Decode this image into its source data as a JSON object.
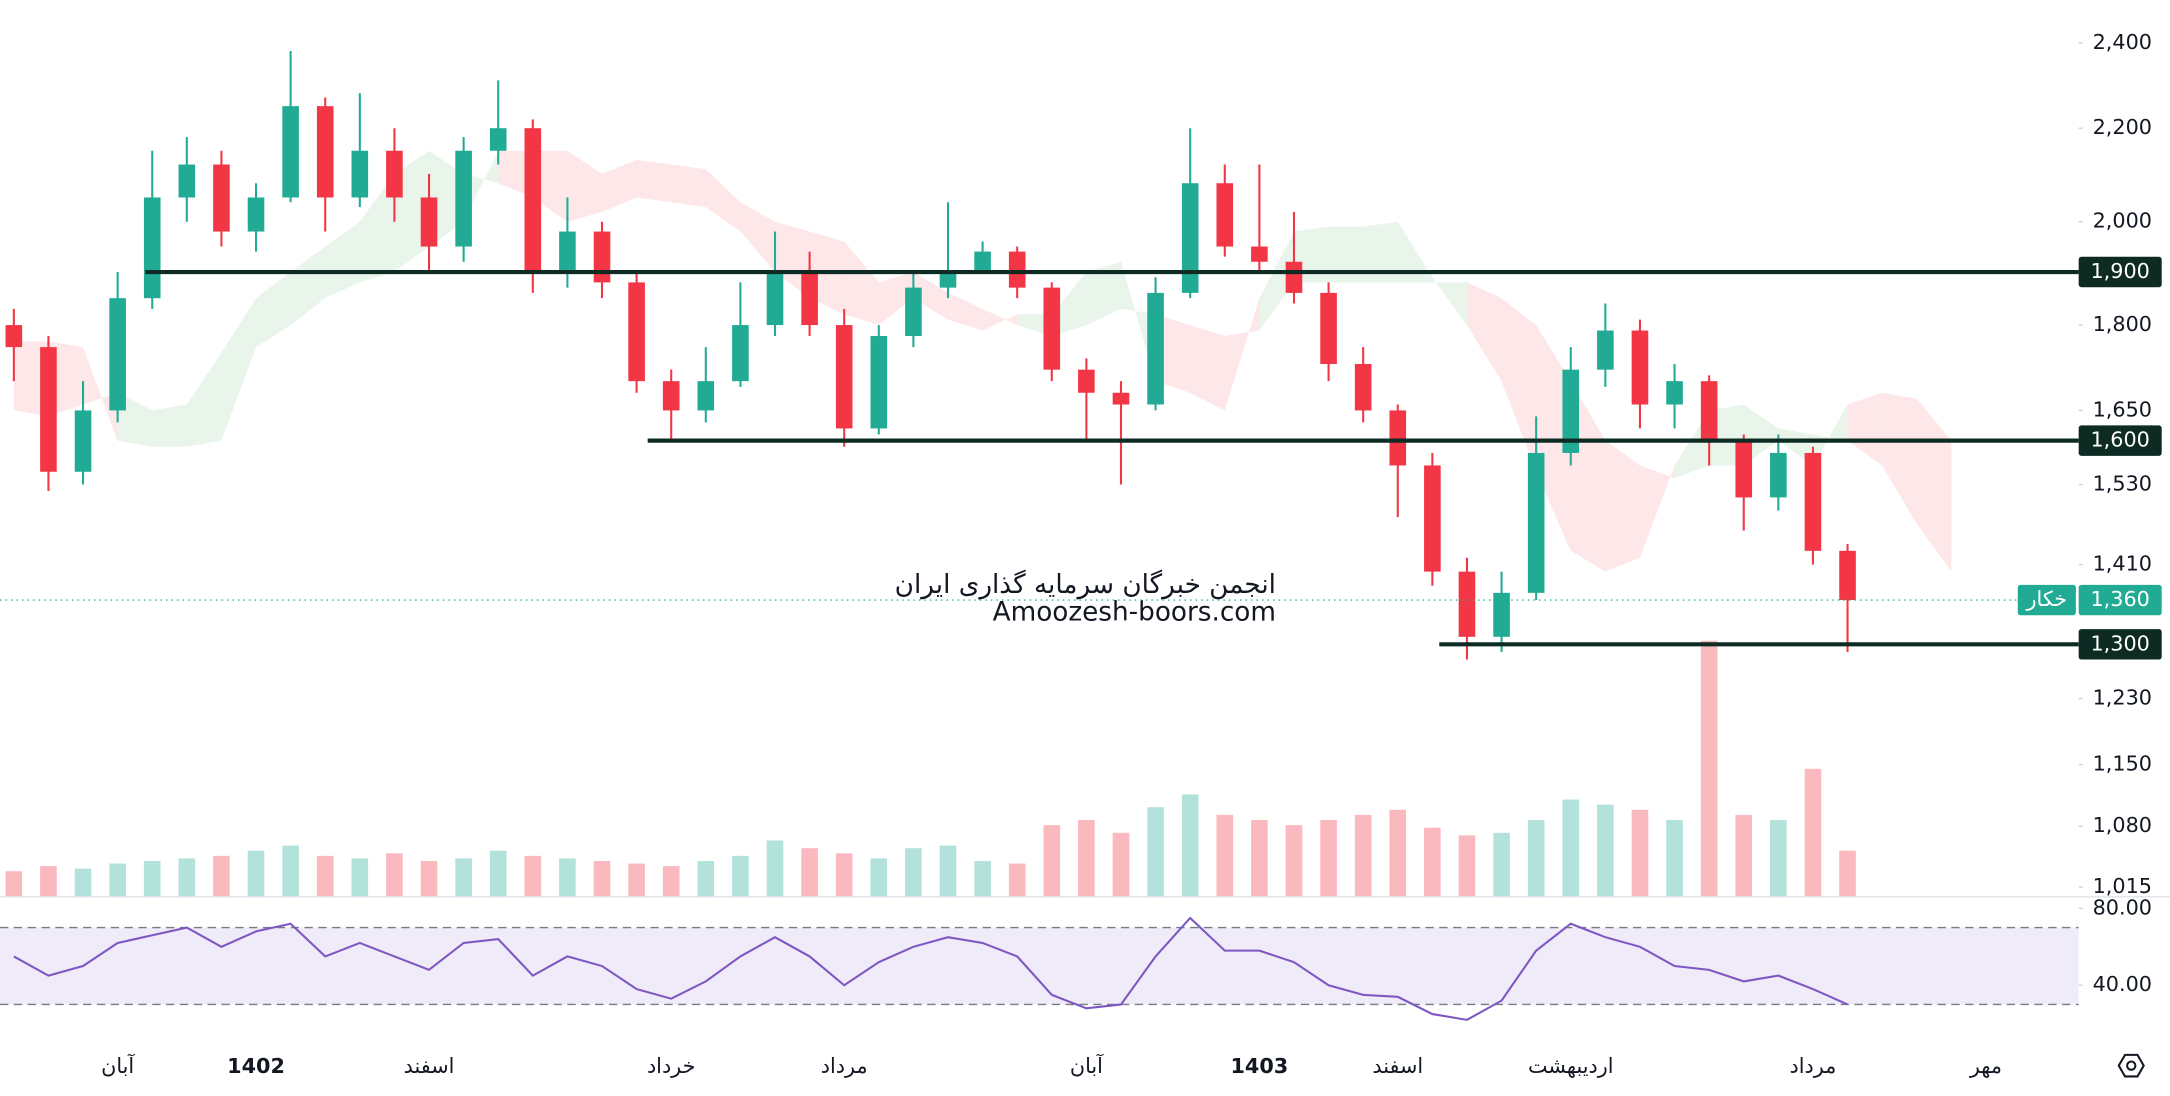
{
  "chart_data": {
    "type": "candlestick",
    "scale": "log",
    "categories": [
      null,
      null,
      null,
      "آبان",
      null,
      null,
      null,
      "1402",
      null,
      null,
      null,
      null,
      "اسفند",
      null,
      null,
      null,
      null,
      null,
      null,
      "خرداد",
      null,
      null,
      null,
      null,
      "مرداد",
      null,
      null,
      null,
      null,
      null,
      null,
      "آبان",
      null,
      null,
      null,
      null,
      "1403",
      null,
      null,
      null,
      "اسفند",
      null,
      null,
      null,
      null,
      "اردیبهشت",
      null,
      null,
      null,
      null,
      null,
      null,
      "مرداد",
      null,
      null,
      null,
      null,
      "مهر",
      null,
      null
    ],
    "open": [
      1800,
      1760,
      1550,
      1650,
      1850,
      2050,
      2120,
      1980,
      2050,
      2250,
      2050,
      2150,
      2050,
      1950,
      2150,
      2200,
      1900,
      1980,
      1880,
      1700,
      1650,
      1700,
      1800,
      1900,
      1800,
      1620,
      1780,
      1870,
      1900,
      1940,
      1870,
      1720,
      1680,
      1660,
      1860,
      2080,
      1950,
      1920,
      1860,
      1730,
      1650,
      1560,
      1400,
      1310,
      1370,
      1580,
      1720,
      1790,
      1660,
      1700,
      1600,
      1510,
      1580,
      1430,
      null,
      null,
      null,
      null,
      null,
      null
    ],
    "high": [
      1830,
      1780,
      1700,
      1900,
      2150,
      2180,
      2150,
      2080,
      2380,
      2270,
      2280,
      2200,
      2100,
      2180,
      2310,
      2220,
      2050,
      2000,
      1900,
      1720,
      1760,
      1880,
      1980,
      1940,
      1830,
      1800,
      1900,
      2040,
      1960,
      1950,
      1880,
      1740,
      1700,
      1890,
      2200,
      2120,
      2120,
      2020,
      1880,
      1760,
      1660,
      1580,
      1420,
      1400,
      1640,
      1760,
      1840,
      1810,
      1730,
      1710,
      1610,
      1610,
      1590,
      1440,
      null,
      null,
      null,
      null,
      null,
      null
    ],
    "low": [
      1700,
      1520,
      1530,
      1630,
      1830,
      2000,
      1950,
      1940,
      2040,
      1980,
      2030,
      2000,
      1900,
      1920,
      2120,
      1860,
      1870,
      1850,
      1680,
      1600,
      1630,
      1690,
      1780,
      1780,
      1590,
      1610,
      1760,
      1850,
      1900,
      1850,
      1700,
      1600,
      1530,
      1650,
      1850,
      1930,
      1900,
      1840,
      1700,
      1630,
      1480,
      1380,
      1280,
      1290,
      1360,
      1560,
      1690,
      1620,
      1620,
      1560,
      1460,
      1490,
      1410,
      1290,
      null,
      null,
      null,
      null,
      null,
      null
    ],
    "close": [
      1760,
      1550,
      1650,
      1850,
      2050,
      2120,
      1980,
      2050,
      2250,
      2050,
      2150,
      2050,
      1950,
      2150,
      2200,
      1900,
      1980,
      1880,
      1700,
      1650,
      1700,
      1800,
      1900,
      1800,
      1620,
      1780,
      1870,
      1900,
      1940,
      1870,
      1720,
      1680,
      1660,
      1860,
      2080,
      1950,
      1920,
      1860,
      1730,
      1650,
      1560,
      1400,
      1310,
      1370,
      1580,
      1720,
      1790,
      1660,
      1700,
      1600,
      1510,
      1580,
      1430,
      1360,
      null,
      null,
      null,
      null,
      null,
      null
    ],
    "volume": [
      1.0,
      1.2,
      1.1,
      1.3,
      1.4,
      1.5,
      1.6,
      1.8,
      2.0,
      1.6,
      1.5,
      1.7,
      1.4,
      1.5,
      1.8,
      1.6,
      1.5,
      1.4,
      1.3,
      1.2,
      1.4,
      1.6,
      2.2,
      1.9,
      1.7,
      1.5,
      1.9,
      2.0,
      1.4,
      1.3,
      2.8,
      3.0,
      2.5,
      3.5,
      4.0,
      3.2,
      3.0,
      2.8,
      3.0,
      3.2,
      3.4,
      2.7,
      2.4,
      2.5,
      3.0,
      3.8,
      3.6,
      3.4,
      3.0,
      10.0,
      3.2,
      3.0,
      5.0,
      1.8,
      null,
      null,
      null,
      null,
      null,
      null
    ],
    "cloud": {
      "span_a": [
        1650,
        1640,
        1660,
        1680,
        1650,
        1660,
        1750,
        1850,
        1900,
        1950,
        2000,
        2100,
        2150,
        2100,
        2080,
        2050,
        2000,
        2020,
        2050,
        2040,
        2030,
        1980,
        1900,
        1850,
        1820,
        1800,
        1850,
        1810,
        1790,
        1820,
        1820,
        1900,
        1920,
        1700,
        1680,
        1650,
        1850,
        1980,
        1990,
        1990,
        2000,
        1890,
        1800,
        1700,
        1550,
        1430,
        1400,
        1420,
        1560,
        1650,
        1660,
        1620,
        1610,
        1600,
        1560,
        1470,
        1400,
        null,
        null,
        null
      ],
      "span_b": [
        1770,
        1770,
        1760,
        1600,
        1590,
        1590,
        1600,
        1760,
        1800,
        1850,
        1880,
        1900,
        1950,
        2000,
        2150,
        2150,
        2150,
        2100,
        2130,
        2120,
        2110,
        2040,
        2000,
        1980,
        1960,
        1880,
        1900,
        1860,
        1830,
        1800,
        1780,
        1800,
        1830,
        1820,
        1800,
        1780,
        1790,
        1880,
        1880,
        1880,
        1880,
        1880,
        1880,
        1850,
        1800,
        1700,
        1600,
        1560,
        1540,
        1560,
        1560,
        1600,
        1560,
        1660,
        1680,
        1670,
        1600,
        null,
        null,
        null
      ]
    },
    "up_color": "#22ab94",
    "down_color": "#f23645",
    "ylim": [
      1005,
      2507
    ],
    "yticks": [
      {
        "value": 2400,
        "label": "2,400"
      },
      {
        "value": 2200,
        "label": "2,200"
      },
      {
        "value": 2000,
        "label": "2,000"
      },
      {
        "value": 1800,
        "label": "1,800"
      },
      {
        "value": 1650,
        "label": "1,650"
      },
      {
        "value": 1530,
        "label": "1,530"
      },
      {
        "value": 1410,
        "label": "1,410"
      },
      {
        "value": 1230,
        "label": "1,230"
      },
      {
        "value": 1150,
        "label": "1,150"
      },
      {
        "value": 1080,
        "label": "1,080"
      },
      {
        "value": 1015,
        "label": "1,015"
      }
    ],
    "levels": [
      {
        "value": 1900,
        "label": "1,900"
      },
      {
        "value": 1600,
        "label": "1,600"
      },
      {
        "value": 1300,
        "label": "1,300"
      }
    ],
    "last_price": {
      "value": 1360,
      "label": "1,360"
    },
    "symbol": "خکار",
    "watermark": [
      "انجمن خبرگان سرمایه گذاری ایران",
      "Amoozesh-boors.com"
    ],
    "rsi": {
      "values": [
        55,
        45,
        50,
        62,
        66,
        70,
        60,
        68,
        72,
        55,
        62,
        55,
        48,
        62,
        64,
        45,
        55,
        50,
        38,
        33,
        42,
        55,
        65,
        55,
        40,
        52,
        60,
        65,
        62,
        55,
        35,
        28,
        30,
        55,
        75,
        58,
        58,
        52,
        40,
        35,
        34,
        25,
        22,
        32,
        58,
        72,
        65,
        60,
        50,
        48,
        42,
        45,
        38,
        30,
        null,
        null,
        null,
        null,
        null,
        null
      ],
      "color": "#7e57c2",
      "band": [
        30,
        70
      ],
      "ylim": [
        14,
        86
      ],
      "yticks": [
        {
          "value": 80,
          "label": "80.00"
        },
        {
          "value": 40,
          "label": "40.00"
        }
      ]
    }
  }
}
